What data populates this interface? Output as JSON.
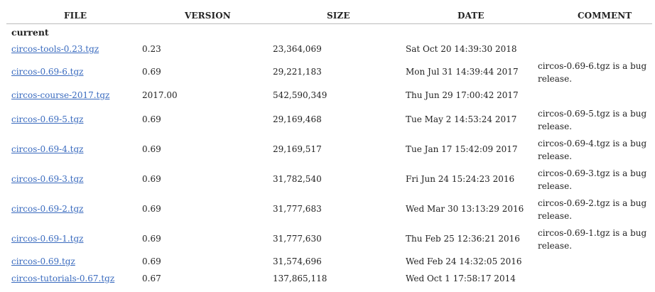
{
  "headers": {
    "file": "FILE",
    "version": "VERSION",
    "size": "SIZE",
    "date": "DATE",
    "comment": "COMMENT"
  },
  "section_label": "current",
  "rows": [
    {
      "file": "circos-tools-0.23.tgz",
      "version": "0.23",
      "size": "23,364,069",
      "date": "Sat Oct 20 14:39:30 2018",
      "comment": ""
    },
    {
      "file": "circos-0.69-6.tgz",
      "version": "0.69",
      "size": "29,221,183",
      "date": "Mon Jul 31 14:39:44 2017",
      "comment": "circos-0.69-6.tgz is a bug release."
    },
    {
      "file": "circos-course-2017.tgz",
      "version": "2017.00",
      "size": "542,590,349",
      "date": "Thu Jun 29 17:00:42 2017",
      "comment": ""
    },
    {
      "file": "circos-0.69-5.tgz",
      "version": "0.69",
      "size": "29,169,468",
      "date": "Tue May 2 14:53:24 2017",
      "comment": "circos-0.69-5.tgz is a bug release."
    },
    {
      "file": "circos-0.69-4.tgz",
      "version": "0.69",
      "size": "29,169,517",
      "date": "Tue Jan 17 15:42:09 2017",
      "comment": "circos-0.69-4.tgz is a bug release."
    },
    {
      "file": "circos-0.69-3.tgz",
      "version": "0.69",
      "size": "31,782,540",
      "date": "Fri Jun 24 15:24:23 2016",
      "comment": "circos-0.69-3.tgz is a bug release."
    },
    {
      "file": "circos-0.69-2.tgz",
      "version": "0.69",
      "size": "31,777,683",
      "date": "Wed Mar 30 13:13:29 2016",
      "comment": "circos-0.69-2.tgz is a bug release."
    },
    {
      "file": "circos-0.69-1.tgz",
      "version": "0.69",
      "size": "31,777,630",
      "date": "Thu Feb 25 12:36:21 2016",
      "comment": "circos-0.69-1.tgz is a bug release."
    },
    {
      "file": "circos-0.69.tgz",
      "version": "0.69",
      "size": "31,574,696",
      "date": "Wed Feb 24 14:32:05 2016",
      "comment": ""
    },
    {
      "file": "circos-tutorials-0.67.tgz",
      "version": "0.67",
      "size": "137,865,118",
      "date": "Wed Oct 1 17:58:17 2014",
      "comment": ""
    }
  ]
}
